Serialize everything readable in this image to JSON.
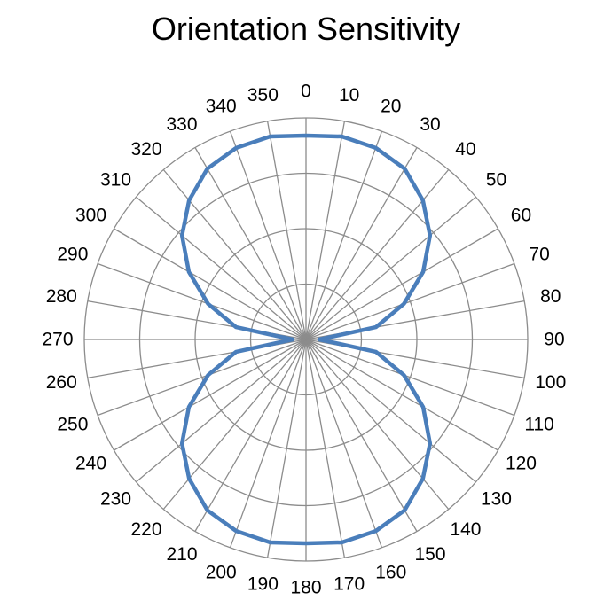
{
  "chart_data": {
    "type": "radar",
    "title": "Orientation Sensitivity",
    "theta_labels": [
      "0",
      "10",
      "20",
      "30",
      "40",
      "50",
      "60",
      "70",
      "80",
      "90",
      "100",
      "110",
      "120",
      "130",
      "140",
      "150",
      "160",
      "170",
      "180",
      "190",
      "200",
      "210",
      "220",
      "230",
      "240",
      "250",
      "260",
      "270",
      "280",
      "290",
      "300",
      "310",
      "320",
      "330",
      "340",
      "350"
    ],
    "r_range": [
      0,
      1
    ],
    "r_gridlines": 4,
    "grid": true,
    "series": [
      {
        "color": "#4a7ebb",
        "theta": [
          0,
          10,
          20,
          30,
          40,
          50,
          60,
          70,
          80,
          90,
          100,
          110,
          120,
          130,
          140,
          150,
          160,
          170,
          180,
          190,
          200,
          210,
          220,
          230,
          240,
          250,
          260,
          270,
          280,
          290,
          300,
          310,
          320,
          330,
          340,
          350
        ],
        "r": [
          0.92,
          0.93,
          0.92,
          0.89,
          0.82,
          0.73,
          0.61,
          0.47,
          0.32,
          0.06,
          0.32,
          0.47,
          0.61,
          0.73,
          0.82,
          0.89,
          0.92,
          0.93,
          0.92,
          0.93,
          0.92,
          0.89,
          0.82,
          0.73,
          0.61,
          0.47,
          0.32,
          0.06,
          0.32,
          0.47,
          0.61,
          0.73,
          0.82,
          0.89,
          0.92,
          0.93
        ]
      }
    ]
  },
  "colors": {
    "grid": "#8c8c8c",
    "series": "#4a7ebb"
  }
}
